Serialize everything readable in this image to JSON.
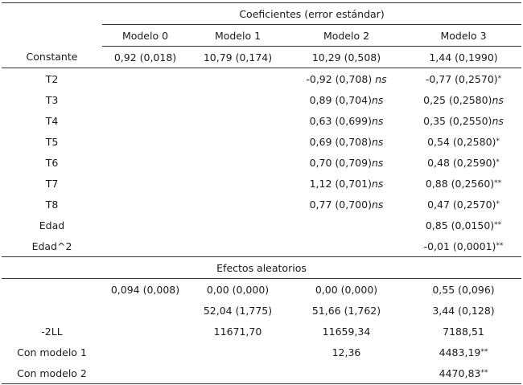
{
  "header": {
    "group_title": "Coeficientes (error estándar)",
    "columns": [
      "Modelo 0",
      "Modelo 1",
      "Modelo 2",
      "Modelo 3"
    ]
  },
  "fixed_rows": [
    {
      "label": "Constante",
      "cells": [
        {
          "v": "0,92 (0,018)",
          "s": ""
        },
        {
          "v": "10,79 (0,174)",
          "s": ""
        },
        {
          "v": "10,29 (0,508)",
          "s": ""
        },
        {
          "v": "1,44 (0,1990)",
          "s": ""
        }
      ]
    },
    {
      "label": "T2",
      "cells": [
        {
          "v": "",
          "s": ""
        },
        {
          "v": "",
          "s": ""
        },
        {
          "v": "-0,92 (0,708) ",
          "s": "ns"
        },
        {
          "v": "-0,77 (0,2570)",
          "s": "*"
        }
      ]
    },
    {
      "label": "T3",
      "cells": [
        {
          "v": "",
          "s": ""
        },
        {
          "v": "",
          "s": ""
        },
        {
          "v": "0,89 (0,704)",
          "s": "ns"
        },
        {
          "v": "0,25 (0,2580)",
          "s": "ns"
        }
      ]
    },
    {
      "label": "T4",
      "cells": [
        {
          "v": "",
          "s": ""
        },
        {
          "v": "",
          "s": ""
        },
        {
          "v": "0,63 (0,699)",
          "s": "ns"
        },
        {
          "v": "0,35 (0,2550)",
          "s": "ns"
        }
      ]
    },
    {
      "label": "T5",
      "cells": [
        {
          "v": "",
          "s": ""
        },
        {
          "v": "",
          "s": ""
        },
        {
          "v": "0,69 (0,708)",
          "s": "ns"
        },
        {
          "v": "0,54 (0,2580)",
          "s": "*"
        }
      ]
    },
    {
      "label": "T6",
      "cells": [
        {
          "v": "",
          "s": ""
        },
        {
          "v": "",
          "s": ""
        },
        {
          "v": "0,70 (0,709)",
          "s": "ns"
        },
        {
          "v": "0,48 (0,2590)",
          "s": "*"
        }
      ]
    },
    {
      "label": "T7",
      "cells": [
        {
          "v": "",
          "s": ""
        },
        {
          "v": "",
          "s": ""
        },
        {
          "v": "1,12 (0,701)",
          "s": "ns"
        },
        {
          "v": "0,88 (0,2560)",
          "s": "**"
        }
      ]
    },
    {
      "label": "T8",
      "cells": [
        {
          "v": "",
          "s": ""
        },
        {
          "v": "",
          "s": ""
        },
        {
          "v": "0,77 (0,700)",
          "s": "ns"
        },
        {
          "v": "0,47 (0,2570)",
          "s": "*"
        }
      ]
    },
    {
      "label": "Edad",
      "cells": [
        {
          "v": "",
          "s": ""
        },
        {
          "v": "",
          "s": ""
        },
        {
          "v": "",
          "s": ""
        },
        {
          "v": "0,85 (0,0150)",
          "s": "**"
        }
      ]
    },
    {
      "label": "Edad^2",
      "cells": [
        {
          "v": "",
          "s": ""
        },
        {
          "v": "",
          "s": ""
        },
        {
          "v": "",
          "s": ""
        },
        {
          "v": "-0,01 (0,0001)",
          "s": "**"
        }
      ]
    }
  ],
  "random_title": "Efectos  aleatorios",
  "random_rows": [
    {
      "label": "",
      "cells": [
        {
          "v": "0,094 (0,008)",
          "s": ""
        },
        {
          "v": "0,00 (0,000)",
          "s": ""
        },
        {
          "v": "0,00 (0,000)",
          "s": ""
        },
        {
          "v": "0,55 (0,096)",
          "s": ""
        }
      ]
    },
    {
      "label": "",
      "cells": [
        {
          "v": "",
          "s": ""
        },
        {
          "v": "52,04 (1,775)",
          "s": ""
        },
        {
          "v": "51,66 (1,762)",
          "s": ""
        },
        {
          "v": "3,44 (0,128)",
          "s": ""
        }
      ]
    },
    {
      "label": "-2LL",
      "cells": [
        {
          "v": "",
          "s": ""
        },
        {
          "v": "11671,70",
          "s": ""
        },
        {
          "v": "11659,34",
          "s": ""
        },
        {
          "v": "7188,51",
          "s": ""
        }
      ]
    },
    {
      "label": "Con modelo 1",
      "cells": [
        {
          "v": "",
          "s": ""
        },
        {
          "v": "",
          "s": ""
        },
        {
          "v": "12,36",
          "s": ""
        },
        {
          "v": "4483,19",
          "s": "**"
        }
      ]
    },
    {
      "label": "Con modelo 2",
      "cells": [
        {
          "v": "",
          "s": ""
        },
        {
          "v": "",
          "s": ""
        },
        {
          "v": "",
          "s": ""
        },
        {
          "v": "4470,83",
          "s": "**"
        }
      ]
    }
  ]
}
